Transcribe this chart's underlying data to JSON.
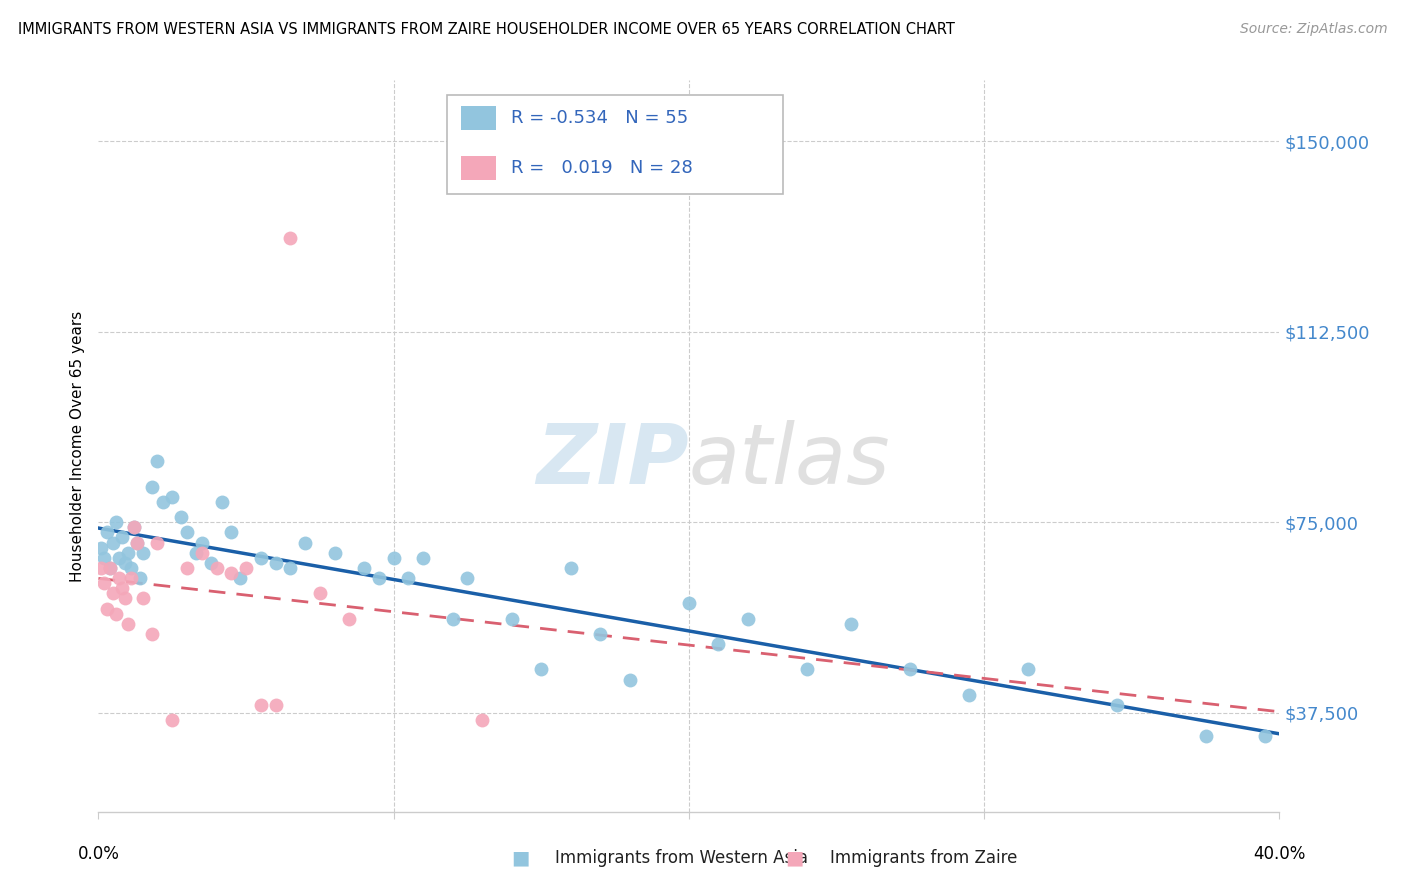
{
  "title": "IMMIGRANTS FROM WESTERN ASIA VS IMMIGRANTS FROM ZAIRE HOUSEHOLDER INCOME OVER 65 YEARS CORRELATION CHART",
  "source": "Source: ZipAtlas.com",
  "ylabel": "Householder Income Over 65 years",
  "xlim": [
    0.0,
    0.4
  ],
  "ylim": [
    18000,
    162000
  ],
  "yticks": [
    37500,
    75000,
    112500,
    150000
  ],
  "ytick_labels": [
    "$37,500",
    "$75,000",
    "$112,500",
    "$150,000"
  ],
  "R_blue": -0.534,
  "N_blue": 55,
  "R_pink": 0.019,
  "N_pink": 28,
  "legend_label_blue": "Immigrants from Western Asia",
  "legend_label_pink": "Immigrants from Zaire",
  "color_blue": "#92c5de",
  "color_pink": "#f4a7b9",
  "trendline_blue": "#1a5fa8",
  "trendline_pink": "#d96070",
  "blue_x": [
    0.001,
    0.002,
    0.003,
    0.004,
    0.005,
    0.006,
    0.007,
    0.008,
    0.009,
    0.01,
    0.011,
    0.012,
    0.013,
    0.014,
    0.015,
    0.018,
    0.02,
    0.022,
    0.025,
    0.028,
    0.03,
    0.033,
    0.035,
    0.038,
    0.042,
    0.045,
    0.048,
    0.055,
    0.06,
    0.065,
    0.07,
    0.08,
    0.09,
    0.095,
    0.1,
    0.105,
    0.11,
    0.12,
    0.125,
    0.14,
    0.15,
    0.16,
    0.17,
    0.18,
    0.2,
    0.21,
    0.22,
    0.24,
    0.255,
    0.275,
    0.295,
    0.315,
    0.345,
    0.375,
    0.395
  ],
  "blue_y": [
    70000,
    68000,
    73000,
    66000,
    71000,
    75000,
    68000,
    72000,
    67000,
    69000,
    66000,
    74000,
    71000,
    64000,
    69000,
    82000,
    87000,
    79000,
    80000,
    76000,
    73000,
    69000,
    71000,
    67000,
    79000,
    73000,
    64000,
    68000,
    67000,
    66000,
    71000,
    69000,
    66000,
    64000,
    68000,
    64000,
    68000,
    56000,
    64000,
    56000,
    46000,
    66000,
    53000,
    44000,
    59000,
    51000,
    56000,
    46000,
    55000,
    46000,
    41000,
    46000,
    39000,
    33000,
    33000
  ],
  "pink_x": [
    0.001,
    0.002,
    0.003,
    0.004,
    0.005,
    0.006,
    0.007,
    0.008,
    0.009,
    0.01,
    0.011,
    0.012,
    0.013,
    0.015,
    0.018,
    0.02,
    0.025,
    0.03,
    0.035,
    0.04,
    0.045,
    0.05,
    0.055,
    0.06,
    0.065,
    0.075,
    0.085,
    0.13
  ],
  "pink_y": [
    66000,
    63000,
    58000,
    66000,
    61000,
    57000,
    64000,
    62000,
    60000,
    55000,
    64000,
    74000,
    71000,
    60000,
    53000,
    71000,
    36000,
    66000,
    69000,
    66000,
    65000,
    66000,
    39000,
    39000,
    131000,
    61000,
    56000,
    36000
  ]
}
